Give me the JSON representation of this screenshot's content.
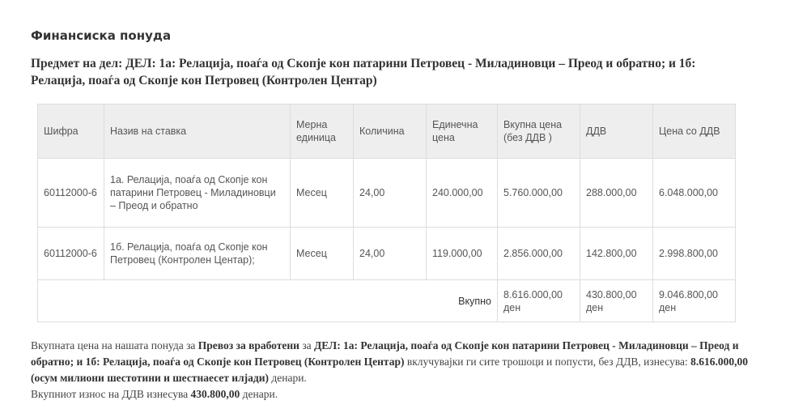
{
  "title": "Финансиска понуда",
  "subject": "Предмет на дел: ДЕЛ: 1а: Релација, поаѓа од Скопје кон патарини Петровец - Миладиновци – Преод и обратно; и 1б: Релација, поаѓа од Скопје кон Петровец (Контролен Центар)",
  "table": {
    "headers": [
      "Шифра",
      "Назив на ставка",
      "Мерна единица",
      "Количина",
      "Единечна цена",
      "Вкупна цена (без ДДВ )",
      "ДДВ",
      "Цена со ДДВ"
    ],
    "rows": [
      [
        "60112000-6",
        "1а. Релација, поаѓа од Скопје кон патарини Петровец - Миладиновци – Преод и обратно",
        "Месец",
        "24,00",
        "240.000,00",
        "5.760.000,00",
        "288.000,00",
        "6.048.000,00"
      ],
      [
        "60112000-6",
        "1б. Релација, поаѓа од Скопје кон Петровец (Контролен Центар);",
        "Месец",
        "24,00",
        "119.000,00",
        "2.856.000,00",
        "142.800,00",
        "2.998.800,00"
      ]
    ],
    "total": {
      "label": "Вкупно",
      "net": "8.616.000,00 ден",
      "vat": "430.800,00 ден",
      "gross": "9.046.800,00 ден"
    }
  },
  "footer": {
    "p1": "Вкупната цена на нашата понуда за ",
    "b1": "Превоз за вработени",
    "p2": " за ",
    "b2": "ДЕЛ: 1а: Релација, поаѓа од Скопје кон патарини Петровец - Миладиновци – Преод и обратно; и 1б: Релација, поаѓа од Скопје кон Петровец (Контролен Центар)",
    "p3": " вклучувајки ги сите трошоци и попусти, без ДДВ, изнесува: ",
    "b3": "8.616.000,00 (осум милиони шестотини и шестнаесет илјади)",
    "p4": " денари.",
    "p5": "Вкупниот износ на ДДВ изнесува ",
    "b4": "430.800,00",
    "p6": " денари."
  }
}
